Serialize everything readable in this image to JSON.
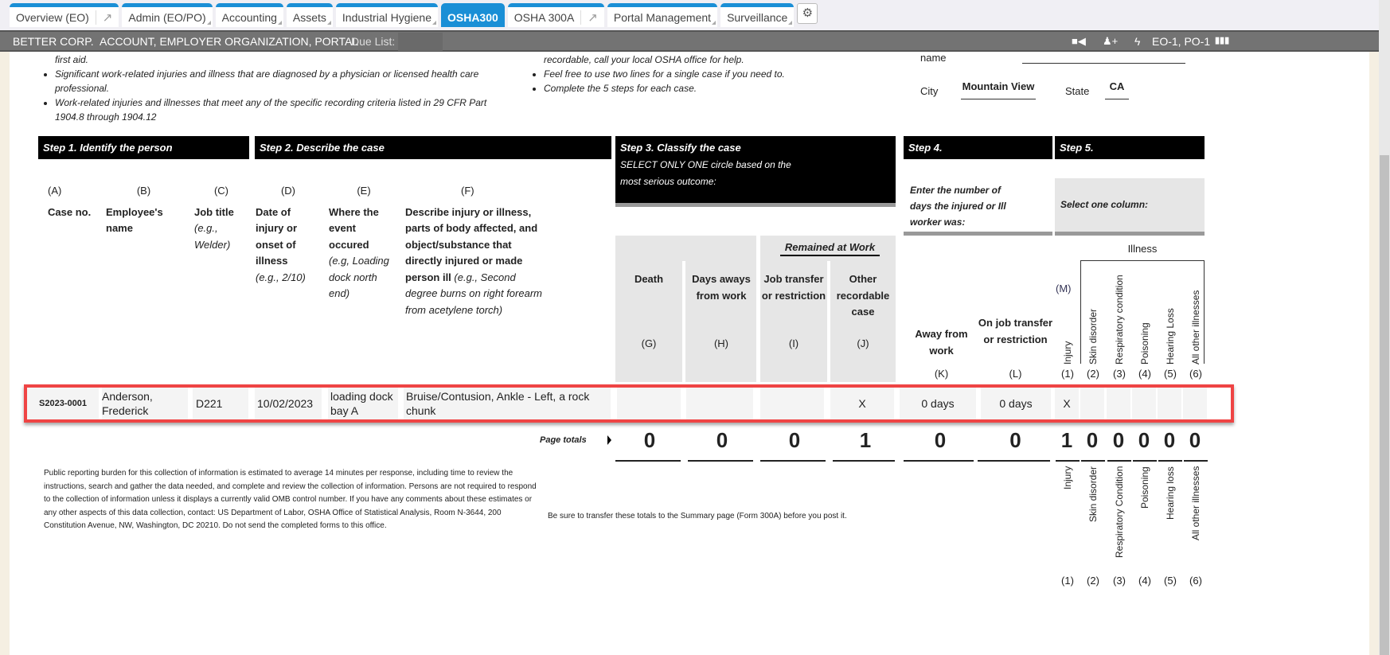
{
  "tabs": [
    {
      "label": "Overview (EO)",
      "ext": true
    },
    {
      "label": "Admin (EO/PO)"
    },
    {
      "label": "Accounting"
    },
    {
      "label": "Assets"
    },
    {
      "label": "Industrial Hygiene"
    },
    {
      "label": "OSHA300",
      "active": true
    },
    {
      "label": "OSHA 300A",
      "ext": true
    },
    {
      "label": "Portal Management"
    },
    {
      "label": "Surveillance"
    }
  ],
  "header": {
    "company": "BETTER CORP.",
    "context": "ACCOUNT, EMPLOYER ORGANIZATION, PORTAL",
    "due_label": "Due List:",
    "org_codes": "EO-1, PO-1"
  },
  "intro": {
    "left_frag": "first aid.",
    "left_items": [
      "Significant work-related injuries and illness that are diagnosed by a physician or licensed health care professional.",
      "Work-related injuries and illnesses that meet any of the specific recording criteria listed in 29 CFR Part 1904.8 through 1904.12"
    ],
    "mid_frag": "recordable, call your local OSHA office for help.",
    "mid_items": [
      "Feel free to use two lines for a single case if you need to.",
      "Complete the 5 steps for each case."
    ]
  },
  "establishment": {
    "name_label": "name",
    "city_label": "City",
    "city": "Mountain View",
    "state_label": "State",
    "state": "CA"
  },
  "steps": {
    "s1": "Step 1. Identify the person",
    "s2": "Step 2. Describe the case",
    "s3": "Step 3. Classify the case",
    "s3_note": "SELECT ONLY ONE circle based on the most serious outcome:",
    "s4": "Step 4.",
    "s4_note": "Enter the number of days the injured or Ill worker was:",
    "s5": "Step 5.",
    "s5_note": "Select one column:"
  },
  "cols": {
    "A": {
      "letter": "(A)",
      "title": "Case no."
    },
    "B": {
      "letter": "(B)",
      "title": "Employee's name"
    },
    "C": {
      "letter": "(C)",
      "title": "Job title",
      "hint": "(e.g., Welder)"
    },
    "D": {
      "letter": "(D)",
      "title": "Date of injury or onset of illness",
      "hint": "(e.g., 2/10)"
    },
    "E": {
      "letter": "(E)",
      "title": "Where the event occured",
      "hint": "(e.g, Loading dock north end)"
    },
    "F": {
      "letter": "(F)",
      "title": "Describe injury or illness, parts of body affected, and object/substance that directly injured or made person ill",
      "hint": "(e.g., Second degree burns on right forearm from acetylene torch)"
    },
    "remained": "Remained at Work",
    "G": {
      "title": "Death",
      "letter": "(G)"
    },
    "H": {
      "title": "Days aways from work",
      "letter": "(H)"
    },
    "I": {
      "title": "Job transfer or restriction",
      "letter": "(I)"
    },
    "J": {
      "title": "Other recordable case",
      "letter": "(J)"
    },
    "K": {
      "title": "Away from work",
      "letter": "(K)"
    },
    "L": {
      "title": "On job transfer or restriction",
      "letter": "(L)"
    },
    "M": "(M)",
    "illness": "Illness",
    "m_cols": [
      {
        "title": "Injury",
        "n": "(1)"
      },
      {
        "title": "Skin disorder",
        "n": "(2)"
      },
      {
        "title": "Respiratory condition",
        "n": "(3)"
      },
      {
        "title": "Poisoning",
        "n": "(4)"
      },
      {
        "title": "Hearing Loss",
        "n": "(5)"
      },
      {
        "title": "All other illnesses",
        "n": "(6)"
      }
    ]
  },
  "row": {
    "case_no": "S2023-0001",
    "name": "Anderson, Frederick",
    "job": "D221",
    "date": "10/02/2023",
    "where": "loading dock bay A",
    "desc": "Bruise/Contusion, Ankle - Left, a rock chunk",
    "G": "",
    "H": "",
    "I": "",
    "J": "X",
    "K": "0 days",
    "L": "0 days",
    "m": [
      "X",
      "",
      "",
      "",
      "",
      ""
    ]
  },
  "totals": {
    "label": "Page totals",
    "G": "0",
    "H": "0",
    "I": "0",
    "J": "1",
    "K": "0",
    "L": "0",
    "m": [
      "1",
      "0",
      "0",
      "0",
      "0",
      "0"
    ]
  },
  "footer_labels": [
    {
      "title": "Injury",
      "n": "(1)"
    },
    {
      "title": "Skin disorder",
      "n": "(2)"
    },
    {
      "title": "Respiratory Condition",
      "n": "(3)"
    },
    {
      "title": "Poisoning",
      "n": "(4)"
    },
    {
      "title": "Hearing loss",
      "n": "(5)"
    },
    {
      "title": "All other illnesses",
      "n": "(6)"
    }
  ],
  "burden": "Public reporting burden for this collection of information is estimated to average 14 minutes per response, including time to review the instructions, search and gather the data needed, and complete and review the collection of information. Persons are not required to respond to the collection of information unless it displays a currently valid OMB control number. If you have any comments about these estimates or any other aspects of this data collection, contact: US Department of Labor, OSHA Office of Statistical Analysis, Room N-3644, 200 Constitution Avenue, NW, Washington, DC 20210. Do not send the completed forms to this office.",
  "transfer_note": "Be sure to transfer these totals to the Summary page (Form 300A) before you post it."
}
